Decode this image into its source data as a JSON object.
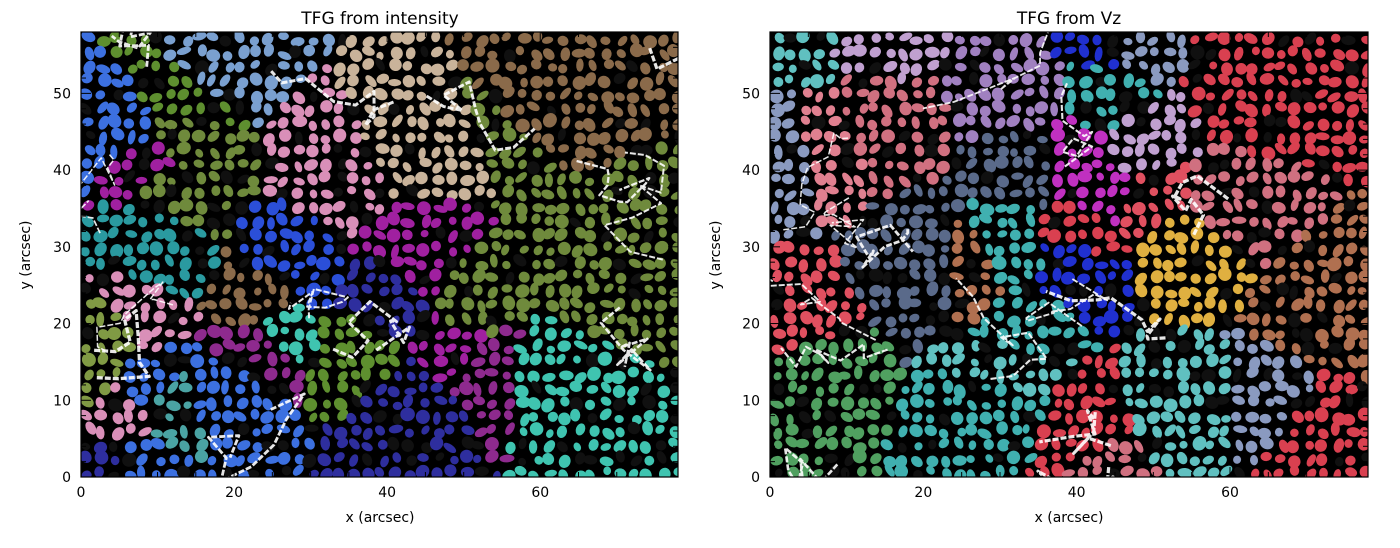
{
  "panels": [
    {
      "id": "intensity",
      "title": "TFG from intensity",
      "xlabel": "x (arcsec)",
      "ylabel": "y (arcsec)",
      "xlim": [
        0,
        78
      ],
      "ylim": [
        0,
        58
      ],
      "xticks": [
        0,
        20,
        40,
        60
      ],
      "yticks": [
        0,
        10,
        20,
        30,
        40,
        50
      ],
      "palette": [
        "#4aa3a3",
        "#2a9aa0",
        "#6f8a3c",
        "#809a44",
        "#5e8f2f",
        "#8e2a8e",
        "#a020a0",
        "#2b4fd8",
        "#3c70e0",
        "#e9a6c6",
        "#d98fb8",
        "#c9b39a",
        "#b8a020",
        "#3fc4b0",
        "#2e2e9e",
        "#7aa0d0",
        "#d2a040",
        "#8a6a4a"
      ]
    },
    {
      "id": "vz",
      "title": "TFG from Vz",
      "xlabel": "x (arcsec)",
      "ylabel": "y (arcsec)",
      "xlim": [
        0,
        78
      ],
      "ylim": [
        0,
        58
      ],
      "xticks": [
        0,
        20,
        40,
        60
      ],
      "yticks": [
        0,
        10,
        20,
        30,
        40,
        50
      ],
      "palette": [
        "#d94050",
        "#e05060",
        "#5a6a8a",
        "#8a9ac0",
        "#c0a0d0",
        "#a080c0",
        "#e020e0",
        "#c030c0",
        "#d0a030",
        "#e0b040",
        "#40b0b0",
        "#60c0c0",
        "#b07050",
        "#d07080",
        "#2030d0",
        "#50a060",
        "#a05040",
        "#e08090"
      ]
    }
  ]
}
